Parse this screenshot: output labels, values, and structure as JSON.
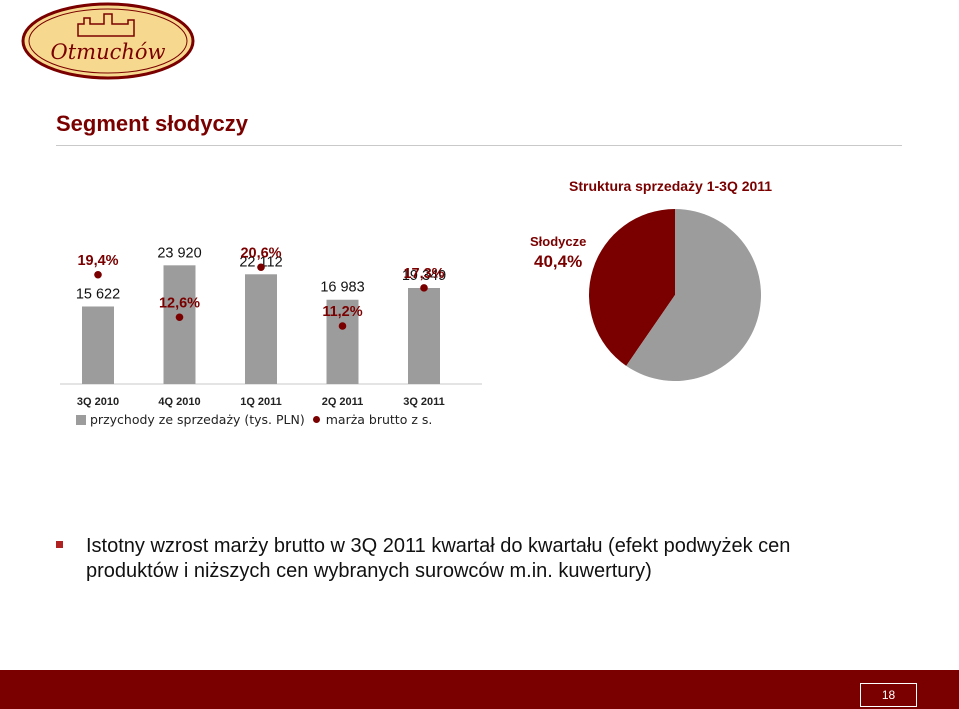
{
  "brand": {
    "logo_text": "Otmuchów",
    "colors": {
      "accent": "#7a0000",
      "bar": "#9c9c9c",
      "logo_fill": "#f6d98e",
      "logo_border": "#7a0000"
    }
  },
  "slide": {
    "title": "Segment słodyczy",
    "pie_title": "Struktura sprzedaży 1-3Q 2011",
    "bullet": "Istotny wzrost marży brutto w 3Q 2011 kwartał do kwartału (efekt podwyżek cen produktów i niższych cen wybranych surowców m.in. kuwertury)",
    "page_number": "18"
  },
  "legend": {
    "bars": "przychody ze sprzedaży (tys. PLN)",
    "dots": "marża brutto z s."
  },
  "chart_data": [
    {
      "type": "bar",
      "categories": [
        "3Q 2010",
        "4Q 2010",
        "1Q 2011",
        "2Q 2011",
        "3Q 2011"
      ],
      "series": [
        {
          "name": "przychody ze sprzedaży (tys. PLN)",
          "values": [
            15622,
            23920,
            22112,
            16983,
            19349
          ],
          "labels": [
            "15 622",
            "23 920",
            "22 112",
            "16 983",
            "19 349"
          ],
          "color": "#9c9c9c"
        },
        {
          "name": "marża brutto z s.",
          "values": [
            19.4,
            12.6,
            20.6,
            11.2,
            17.3
          ],
          "labels": [
            "19,4%",
            "12,6%",
            "20,6%",
            "11,2%",
            "17,3%"
          ],
          "color": "#7a0000",
          "marker": "dot"
        }
      ]
    },
    {
      "type": "pie",
      "title": "Struktura sprzedaży 1-3Q 2011",
      "slices": [
        {
          "name": "Słodycze",
          "value": 40.4,
          "label": "40,4%",
          "color": "#7a0000"
        },
        {
          "name": "",
          "value": 59.6,
          "color": "#9c9c9c"
        }
      ]
    }
  ]
}
